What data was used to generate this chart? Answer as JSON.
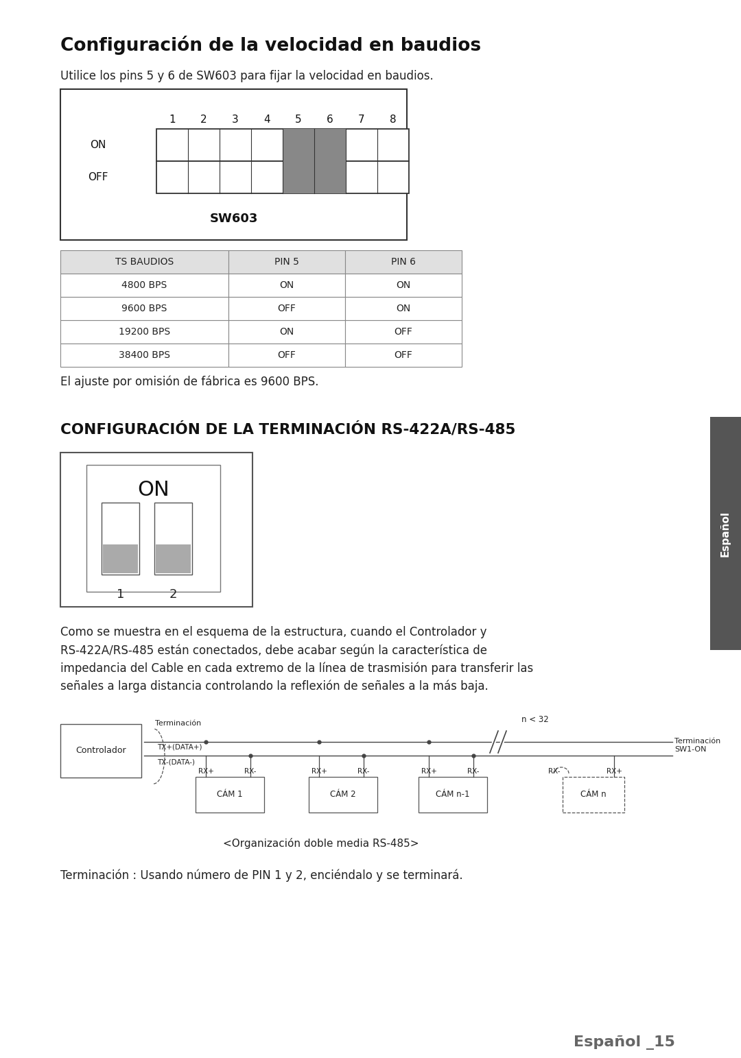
{
  "title1": "Configuración de la velocidad en baudios",
  "subtitle1": "Utilice los pins 5 y 6 de SW603 para fijar la velocidad en baudios.",
  "sw603_label": "SW603",
  "sw603_pins": [
    "1",
    "2",
    "3",
    "4",
    "5",
    "6",
    "7",
    "8"
  ],
  "sw603_on_label": "ON",
  "sw603_off_label": "OFF",
  "sw603_dark_cols": [
    4,
    5
  ],
  "table_header": [
    "TS BAUDIOS",
    "PIN 5",
    "PIN 6"
  ],
  "table_rows": [
    [
      "4800 BPS",
      "ON",
      "ON"
    ],
    [
      "9600 BPS",
      "OFF",
      "ON"
    ],
    [
      "19200 BPS",
      "ON",
      "OFF"
    ],
    [
      "38400 BPS",
      "OFF",
      "OFF"
    ]
  ],
  "default_note": "El ajuste por omisión de fábrica es 9600 BPS.",
  "title2": "CONFIGURACIÓN DE LA TERMINACIÓN RS-422A/RS-485",
  "body_text": "Como se muestra en el esquema de la estructura, cuando el Controlador y\nRS-422A/RS-485 están conectados, debe acabar según la característica de\nimpedancia del Cable en cada extremo de la línea de trasmisión para transferir las\nseñales a larga distancia controlando la reflexión de señales a la más baja.",
  "diagram_caption": "<Organización doble media RS-485>",
  "termination_note": "Terminación : Usando número de PIN 1 y 2, enciéndalo y se terminará.",
  "footer": "Español _15",
  "sidebar_text": "Español",
  "bg_color": "#ffffff",
  "border_color": "#444444",
  "table_header_bg": "#e0e0e0",
  "dark_switch_color": "#888888",
  "sidebar_bg": "#555555",
  "sidebar_text_color": "#ffffff"
}
